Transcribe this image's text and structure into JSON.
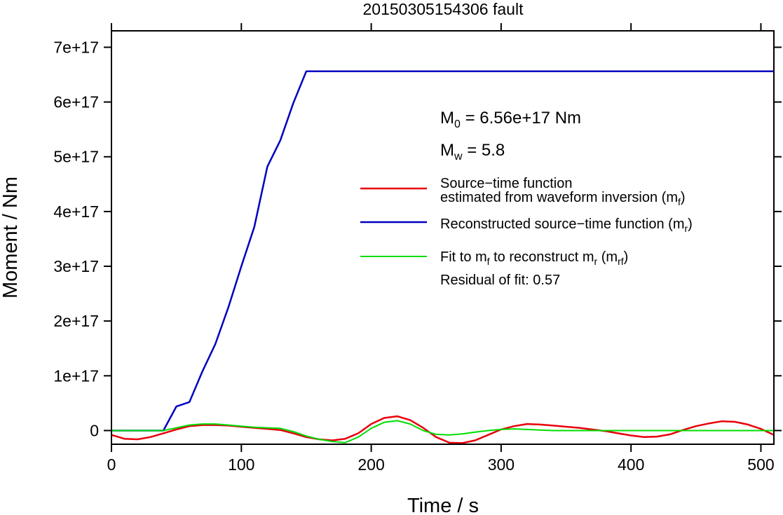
{
  "chart_data": {
    "type": "line",
    "title": "20150305154306 fault",
    "xlabel": "Time / s",
    "ylabel": "Moment / Nm",
    "xlim": [
      0,
      510
    ],
    "ylim": [
      -2.5e+16,
      7.3e+17
    ],
    "x_ticks": [
      0,
      100,
      200,
      300,
      400,
      500
    ],
    "x_tick_labels": [
      "0",
      "100",
      "200",
      "300",
      "400",
      "500"
    ],
    "y_ticks": [
      0,
      1e+17,
      2e+17,
      3e+17,
      4e+17,
      5e+17,
      6e+17,
      7e+17
    ],
    "y_tick_labels": [
      "0",
      "1e+17",
      "2e+17",
      "3e+17",
      "4e+17",
      "5e+17",
      "6e+17",
      "7e+17"
    ],
    "grid": false,
    "legend_position": "right",
    "annotations": {
      "m0_symbol": "M",
      "m0_sub": "0",
      "m0_value": " = 6.56e+17 Nm",
      "mw_symbol": "M",
      "mw_sub": "w",
      "mw_value": " = 5.8",
      "residual": "Residual of fit: 0.57"
    },
    "legend": [
      {
        "color": "#e8000b",
        "line1": "Source−time function",
        "line2_text": "estimated from waveform inversion (m",
        "line2_sub": "f",
        "line2_end": ")"
      },
      {
        "color": "#0000c0",
        "text": "Reconstructed source−time function (m",
        "sub": "r",
        "end": ")"
      },
      {
        "color": "#00dd00",
        "t1": "Fit to m",
        "s1": "f",
        "t2": " to reconstruct m",
        "s2": "r",
        "t3": " (m",
        "s3": "rf",
        "t4": ")"
      }
    ],
    "series": [
      {
        "color": "#0000c0",
        "x": [
          0,
          40,
          50,
          60,
          70,
          80,
          90,
          100,
          110,
          120,
          130,
          140,
          150,
          510
        ],
        "y": [
          0,
          0,
          4.4e+16,
          5.2e+16,
          1.08e+17,
          1.58e+17,
          2.25e+17,
          3e+17,
          3.72e+17,
          4.82e+17,
          5.3e+17,
          5.98e+17,
          6.56e+17,
          6.56e+17
        ]
      },
      {
        "color": "#e8000b",
        "x": [
          0,
          10,
          20,
          30,
          40,
          50,
          60,
          70,
          80,
          90,
          100,
          110,
          120,
          130,
          140,
          150,
          160,
          170,
          180,
          190,
          200,
          210,
          220,
          230,
          240,
          250,
          260,
          270,
          280,
          290,
          300,
          310,
          320,
          330,
          340,
          350,
          360,
          370,
          380,
          390,
          400,
          410,
          420,
          430,
          440,
          450,
          460,
          470,
          480,
          490,
          500,
          510
        ],
        "y": [
          -8000000000000000.0,
          -1.5e+16,
          -1.6e+16,
          -1.2e+16,
          -5000000000000000.0,
          2000000000000000.0,
          8000000000000000.0,
          1e+16,
          1e+16,
          9000000000000000.0,
          7000000000000000.0,
          5000000000000000.0,
          3000000000000000.0,
          1000000000000000.0,
          -5000000000000000.0,
          -1.2e+16,
          -1.6e+16,
          -1.8e+16,
          -1.5e+16,
          -5000000000000000.0,
          1.2e+16,
          2.3e+16,
          2.6e+16,
          1.9e+16,
          5000000000000000.0,
          -1.2e+16,
          -2.2e+16,
          -2.3e+16,
          -1.8e+16,
          -8000000000000000.0,
          2000000000000000.0,
          8000000000000000.0,
          1.2e+16,
          1.1e+16,
          9000000000000000.0,
          7000000000000000.0,
          5000000000000000.0,
          2000000000000000.0,
          -1000000000000000.0,
          -5000000000000000.0,
          -9000000000000000.0,
          -1.2e+16,
          -1.1e+16,
          -7000000000000000.0,
          1000000000000000.0,
          8000000000000000.0,
          1.3e+16,
          1.7e+16,
          1.6e+16,
          1.1e+16,
          3000000000000000.0,
          -8000000000000000.0
        ]
      },
      {
        "color": "#00dd00",
        "x": [
          0,
          10,
          20,
          30,
          40,
          50,
          60,
          70,
          80,
          90,
          100,
          110,
          120,
          130,
          140,
          150,
          160,
          170,
          180,
          190,
          200,
          210,
          220,
          230,
          240,
          250,
          260,
          270,
          280,
          290,
          300,
          310,
          320,
          330,
          340,
          350,
          360,
          370,
          380,
          390,
          400,
          410,
          420,
          430,
          440,
          450,
          460,
          470,
          480,
          490,
          500,
          510
        ],
        "y": [
          0,
          0,
          0,
          0,
          0,
          5000000000000000.0,
          1e+16,
          1.2e+16,
          1.2e+16,
          1e+16,
          8000000000000000.0,
          6000000000000000.0,
          5000000000000000.0,
          4000000000000000.0,
          -2000000000000000.0,
          -1e+16,
          -1.6e+16,
          -2e+16,
          -2.2e+16,
          -1.2e+16,
          4000000000000000.0,
          1.5e+16,
          1.8e+16,
          1.2e+16,
          0,
          -7000000000000000.0,
          -8000000000000000.0,
          -6000000000000000.0,
          -3000000000000000.0,
          0,
          2000000000000000.0,
          3000000000000000.0,
          2000000000000000.0,
          1000000000000000.0,
          0,
          0,
          0,
          0,
          0,
          0,
          0,
          0,
          0,
          0,
          0,
          0,
          0,
          0,
          0,
          0,
          0,
          0
        ]
      }
    ]
  }
}
